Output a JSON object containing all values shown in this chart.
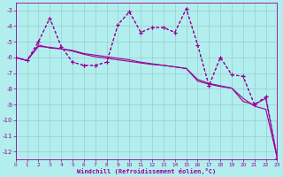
{
  "background_color": "#b2eeee",
  "grid_color": "#99cccc",
  "line_color": "#990099",
  "xlabel": "Windchill (Refroidissement éolien,°C)",
  "xlim": [
    0,
    23
  ],
  "ylim": [
    -12.5,
    -2.5
  ],
  "yticks": [
    -12,
    -11,
    -10,
    -9,
    -8,
    -7,
    -6,
    -5,
    -4,
    -3
  ],
  "xticks": [
    0,
    1,
    2,
    3,
    4,
    5,
    6,
    7,
    8,
    9,
    10,
    11,
    12,
    13,
    14,
    15,
    16,
    17,
    18,
    19,
    20,
    21,
    22,
    23
  ],
  "s1x": [
    0,
    1,
    2,
    3,
    4,
    5,
    6,
    7,
    8,
    9,
    10,
    11,
    12,
    13,
    14,
    15,
    16,
    17,
    18,
    19,
    20,
    21,
    22,
    23
  ],
  "s1y": [
    -6.0,
    -6.2,
    -5.0,
    -3.5,
    -5.3,
    -6.3,
    -6.5,
    -6.5,
    -6.3,
    -3.9,
    -3.1,
    -4.4,
    -4.1,
    -4.1,
    -4.4,
    -2.9,
    -5.2,
    -7.8,
    -6.0,
    -7.1,
    -7.2,
    -9.0,
    -8.5,
    -12.4
  ],
  "s2x": [
    0,
    1,
    2,
    3,
    4,
    5,
    6,
    7,
    8,
    9,
    10,
    11,
    12,
    13,
    14,
    15,
    16,
    17,
    18,
    19,
    20,
    21,
    22,
    23
  ],
  "s2y": [
    -6.0,
    -6.2,
    -5.2,
    -5.4,
    -5.45,
    -5.55,
    -5.75,
    -5.85,
    -5.95,
    -6.05,
    -6.15,
    -6.3,
    -6.4,
    -6.5,
    -6.6,
    -6.7,
    -7.5,
    -7.7,
    -7.85,
    -7.95,
    -8.6,
    -9.1,
    -9.3,
    -12.4
  ],
  "s3x": [
    0,
    1,
    2,
    3,
    4,
    5,
    6,
    7,
    8,
    9,
    10,
    11,
    12,
    13,
    14,
    15,
    16,
    17,
    18,
    19,
    20,
    21,
    22,
    23
  ],
  "s3y": [
    -6.0,
    -6.2,
    -5.0,
    -3.5,
    -5.3,
    -6.3,
    -6.5,
    -6.5,
    -6.3,
    -3.9,
    -3.1,
    -4.4,
    -4.1,
    -4.1,
    -4.4,
    -2.9,
    -5.2,
    -7.8,
    -6.0,
    -7.1,
    -7.2,
    -9.0,
    -8.5,
    -12.4
  ],
  "s4x": [
    0,
    1,
    2,
    3,
    4,
    5,
    6,
    7,
    8,
    9,
    10,
    11,
    12,
    13,
    14,
    15,
    16,
    17,
    18,
    19,
    20,
    21,
    22,
    23
  ],
  "s4y": [
    -6.0,
    -6.2,
    -5.3,
    -5.35,
    -5.45,
    -5.6,
    -5.8,
    -5.95,
    -6.05,
    -6.15,
    -6.25,
    -6.35,
    -6.45,
    -6.5,
    -6.6,
    -6.7,
    -7.4,
    -7.65,
    -7.8,
    -7.95,
    -8.8,
    -9.0,
    -8.6,
    -12.4
  ]
}
